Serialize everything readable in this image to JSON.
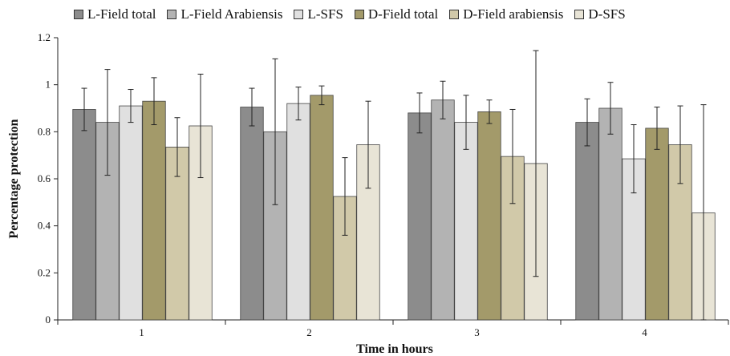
{
  "chart_data": {
    "type": "bar",
    "title": "",
    "xlabel": "Time in hours",
    "ylabel": "Percentage protection",
    "categories": [
      "1",
      "2",
      "3",
      "4"
    ],
    "ylim": [
      0,
      1.2
    ],
    "yticks": [
      "0",
      "0.2",
      "0.4",
      "0.6",
      "0.8",
      "1",
      "1.2"
    ],
    "legend_position": "top",
    "grid": false,
    "series": [
      {
        "name": "L-Field total",
        "color": "#8c8c8c",
        "values": [
          0.895,
          0.905,
          0.88,
          0.84
        ],
        "error": [
          0.09,
          0.08,
          0.085,
          0.1
        ]
      },
      {
        "name": "L-Field Arabiensis",
        "color": "#b3b3b3",
        "values": [
          0.84,
          0.8,
          0.935,
          0.9
        ],
        "error": [
          0.225,
          0.31,
          0.08,
          0.11
        ]
      },
      {
        "name": "L-SFS",
        "color": "#e0e0e0",
        "values": [
          0.91,
          0.92,
          0.84,
          0.685
        ],
        "error": [
          0.07,
          0.07,
          0.115,
          0.145
        ]
      },
      {
        "name": "D-Field total",
        "color": "#a39a6a",
        "values": [
          0.93,
          0.955,
          0.885,
          0.815
        ],
        "error": [
          0.1,
          0.04,
          0.05,
          0.09
        ]
      },
      {
        "name": "D-Field arabiensis",
        "color": "#d1c9a9",
        "values": [
          0.735,
          0.525,
          0.695,
          0.745
        ],
        "error": [
          0.125,
          0.165,
          0.2,
          0.165
        ]
      },
      {
        "name": "D-SFS",
        "color": "#e8e4d6",
        "values": [
          0.825,
          0.745,
          0.665,
          0.455
        ],
        "error": [
          0.22,
          0.185,
          0.48,
          0.46
        ]
      }
    ]
  }
}
